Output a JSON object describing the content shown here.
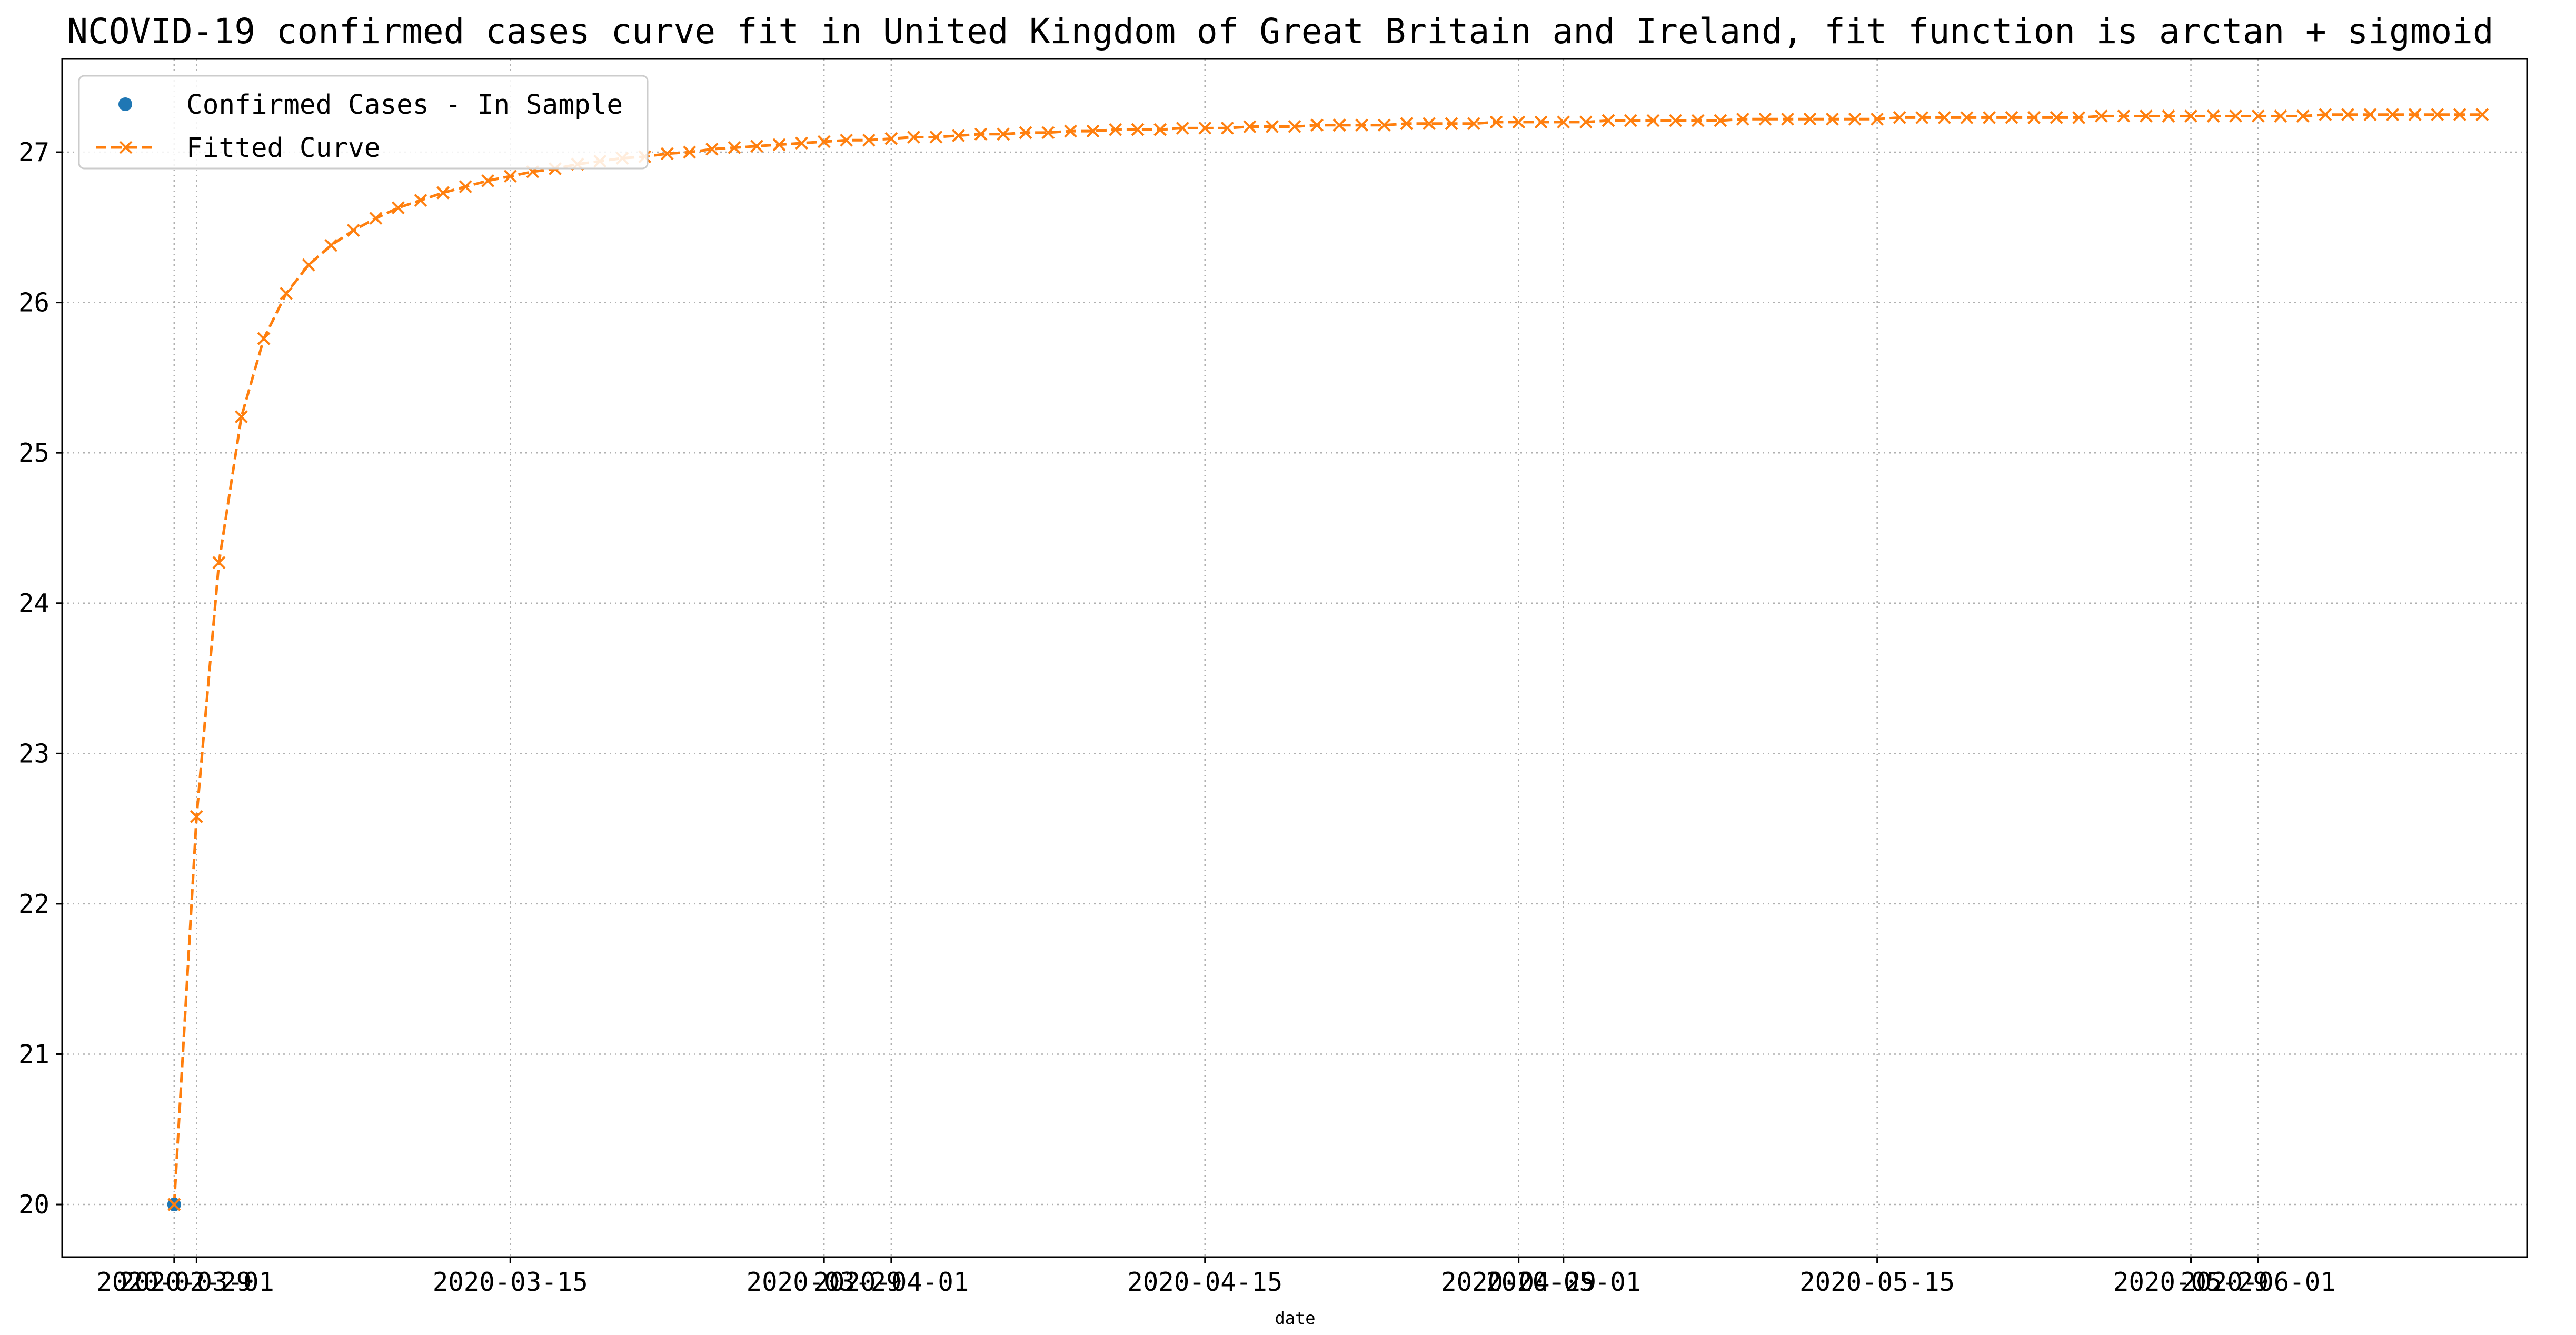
{
  "chart_data": {
    "type": "line",
    "title": "NCOVID-19 confirmed cases curve fit in United Kingdom of Great Britain and Ireland, fit function is arctan + sigmoid",
    "xlabel": "date",
    "ylabel": "",
    "x_ticks": [
      "2020-02-29",
      "2020-03-01",
      "2020-03-15",
      "2020-03-29",
      "2020-04-01",
      "2020-04-15",
      "2020-04-29",
      "2020-05-01",
      "2020-05-15",
      "2020-05-29",
      "2020-06-01"
    ],
    "y_ticks": [
      20,
      21,
      22,
      23,
      24,
      25,
      26,
      27
    ],
    "xlim": [
      "2020-02-24",
      "2020-06-13"
    ],
    "ylim": [
      19.65,
      27.62
    ],
    "grid": true,
    "grid_style": "dotted",
    "legend_position": "top-left",
    "series": [
      {
        "name": "Confirmed Cases - In Sample",
        "style": "markers",
        "marker": "circle",
        "color": "#1f77b4",
        "x": [
          "2020-02-29"
        ],
        "y": [
          20.0
        ]
      },
      {
        "name": "Fitted Curve",
        "style": "dashed-line-x-markers",
        "marker": "x",
        "color": "#ff7f0e",
        "x_start": "2020-02-29",
        "x_step_days": 1,
        "y": [
          20.0,
          22.58,
          24.27,
          25.24,
          25.76,
          26.06,
          26.25,
          26.38,
          26.48,
          26.56,
          26.63,
          26.68,
          26.73,
          26.77,
          26.81,
          26.84,
          26.87,
          26.89,
          26.92,
          26.94,
          26.96,
          26.97,
          26.99,
          27.0,
          27.02,
          27.03,
          27.04,
          27.05,
          27.06,
          27.07,
          27.08,
          27.08,
          27.09,
          27.1,
          27.1,
          27.11,
          27.12,
          27.12,
          27.13,
          27.13,
          27.14,
          27.14,
          27.15,
          27.15,
          27.15,
          27.16,
          27.16,
          27.16,
          27.17,
          27.17,
          27.17,
          27.18,
          27.18,
          27.18,
          27.18,
          27.19,
          27.19,
          27.19,
          27.19,
          27.2,
          27.2,
          27.2,
          27.2,
          27.2,
          27.21,
          27.21,
          27.21,
          27.21,
          27.21,
          27.21,
          27.22,
          27.22,
          27.22,
          27.22,
          27.22,
          27.22,
          27.22,
          27.23,
          27.23,
          27.23,
          27.23,
          27.23,
          27.23,
          27.23,
          27.23,
          27.23,
          27.24,
          27.24,
          27.24,
          27.24,
          27.24,
          27.24,
          27.24,
          27.24,
          27.24,
          27.24,
          27.25,
          27.25,
          27.25,
          27.25,
          27.25,
          27.25,
          27.25,
          27.25
        ]
      }
    ]
  }
}
